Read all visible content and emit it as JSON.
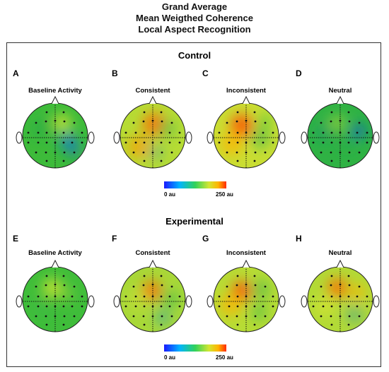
{
  "title": {
    "line1": "Grand Average",
    "line2": "Mean Weigthed Coherence",
    "line3": "Local Aspect Recognition"
  },
  "groups": [
    {
      "name": "Control",
      "panels": [
        {
          "letter": "A",
          "condition": "Baseline Activity"
        },
        {
          "letter": "B",
          "condition": "Consistent"
        },
        {
          "letter": "C",
          "condition": "Inconsistent"
        },
        {
          "letter": "D",
          "condition": "Neutral"
        }
      ],
      "colorbar": {
        "min_label": "0 au",
        "max_label": "250 au"
      }
    },
    {
      "name": "Experimental",
      "panels": [
        {
          "letter": "E",
          "condition": "Baseline Activity"
        },
        {
          "letter": "F",
          "condition": "Consistent"
        },
        {
          "letter": "G",
          "condition": "Inconsistent"
        },
        {
          "letter": "H",
          "condition": "Neutral"
        }
      ],
      "colorbar": {
        "min_label": "0 au",
        "max_label": "250 au"
      }
    }
  ],
  "colors": {
    "scale": [
      "#1a1aff",
      "#00b4ff",
      "#32d25a",
      "#d2e632",
      "#ffb400",
      "#ff2a00"
    ],
    "head_base": {
      "A": "#3dbb3a",
      "B": "#b6dc34",
      "C": "#c9de33",
      "D": "#2fb244",
      "E": "#3fbd3a",
      "F": "#a8d838",
      "G": "#b7dc35",
      "H": "#b2da36"
    }
  }
}
